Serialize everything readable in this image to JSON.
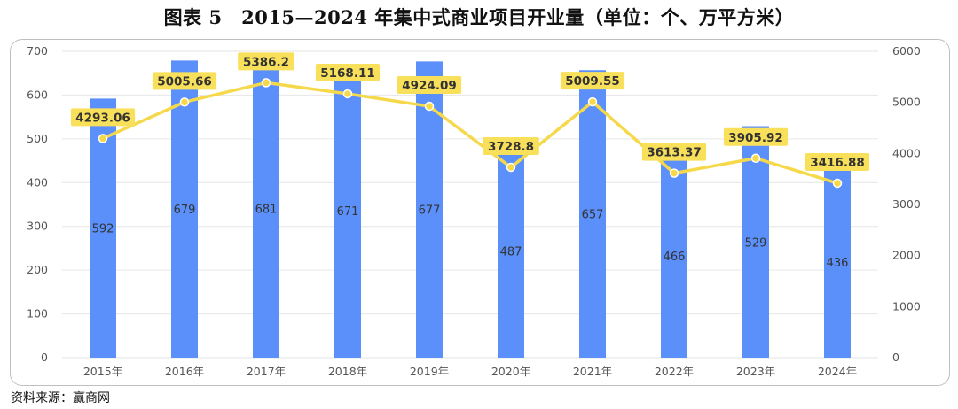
{
  "title": "图表 5　2015—2024 年集中式商业项目开业量（单位：个、万平方米）",
  "source": "资料来源：赢商网",
  "colors": {
    "bar": "#5b8ff9",
    "line": "#f5d94a",
    "label_bg": "#f9e05a",
    "grid": "#e6e6e6"
  },
  "chart_data": {
    "type": "bar",
    "title": "图表 5　2015—2024 年集中式商业项目开业量（单位：个、万平方米）",
    "categories": [
      "2015年",
      "2016年",
      "2017年",
      "2018年",
      "2019年",
      "2020年",
      "2021年",
      "2022年",
      "2023年",
      "2024年"
    ],
    "series": [
      {
        "type": "bar",
        "axis": "left",
        "values": [
          592,
          679,
          681,
          671,
          677,
          487,
          657,
          466,
          529,
          436
        ],
        "labels": [
          "592",
          "679",
          "681",
          "671",
          "677",
          "487",
          "657",
          "466",
          "529",
          "436"
        ]
      },
      {
        "type": "line",
        "axis": "right",
        "values": [
          4293.06,
          5005.66,
          5386.2,
          5168.11,
          4924.09,
          3728.8,
          5009.55,
          3613.37,
          3905.92,
          3416.88
        ],
        "labels": [
          "4293.06",
          "5005.66",
          "5386.2",
          "5168.11",
          "4924.09",
          "3728.8",
          "5009.55",
          "3613.37",
          "3905.92",
          "3416.88"
        ]
      }
    ],
    "left_axis": {
      "ylim": [
        0,
        700
      ],
      "ticks": [
        "0",
        "100",
        "200",
        "300",
        "400",
        "500",
        "600",
        "700"
      ]
    },
    "right_axis": {
      "ylim": [
        0,
        6000
      ],
      "ticks": [
        "0",
        "1000",
        "2000",
        "3000",
        "4000",
        "5000",
        "6000"
      ]
    },
    "grid": true,
    "legend": "none"
  }
}
